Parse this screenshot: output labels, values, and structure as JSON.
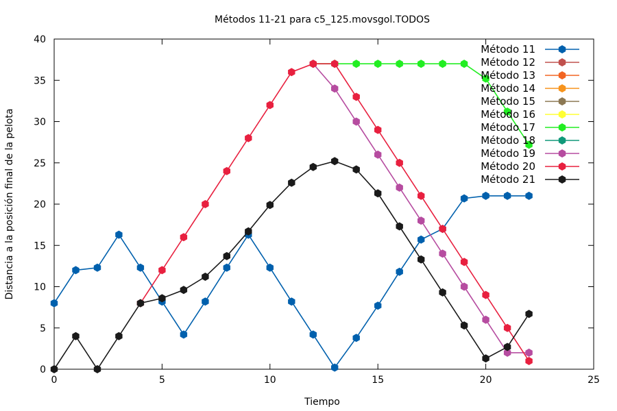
{
  "chart_data": {
    "type": "line",
    "title": "Métodos 11-21 para c5_125.movsgol.TODOS",
    "xlabel": "Tiempo",
    "ylabel": "Distancia a la posición final de la pelota",
    "xlim": [
      0,
      25
    ],
    "ylim": [
      0,
      40
    ],
    "xticks": [
      0,
      5,
      10,
      15,
      20,
      25
    ],
    "yticks": [
      0,
      5,
      10,
      15,
      20,
      25,
      30,
      35,
      40
    ],
    "grid": false,
    "legend_position": "top-right",
    "series": [
      {
        "name": "Método 11",
        "color": "#0060ad",
        "x": [
          0,
          1,
          2,
          3,
          4,
          5,
          6,
          7,
          8,
          9,
          10,
          11,
          12,
          13,
          14,
          15,
          16,
          17,
          18,
          19,
          20,
          21,
          22
        ],
        "y": [
          8,
          12,
          12.3,
          16.3,
          12.3,
          8.2,
          4.2,
          8.2,
          12.3,
          16.3,
          12.3,
          8.2,
          4.2,
          0.2,
          3.8,
          7.7,
          11.8,
          15.7,
          17,
          20.7,
          21,
          21,
          21
        ]
      },
      {
        "name": "Método 12",
        "color": "#c0504d",
        "x": [],
        "y": []
      },
      {
        "name": "Método 13",
        "color": "#f26522",
        "x": [],
        "y": []
      },
      {
        "name": "Método 14",
        "color": "#f7941d",
        "x": [],
        "y": []
      },
      {
        "name": "Método 15",
        "color": "#8c7853",
        "x": [],
        "y": []
      },
      {
        "name": "Método 16",
        "color": "#ffff33",
        "x": [],
        "y": []
      },
      {
        "name": "Método 17",
        "color": "#22ee22",
        "x": [
          12,
          13,
          14,
          15,
          16,
          17,
          18,
          19,
          20,
          21,
          22
        ],
        "y": [
          37,
          37,
          37,
          37,
          37,
          37,
          37,
          37,
          35.2,
          31.2,
          27.2
        ]
      },
      {
        "name": "Método 18",
        "color": "#11997a",
        "x": [],
        "y": []
      },
      {
        "name": "Método 19",
        "color": "#b64ca0",
        "x": [
          12,
          13,
          14,
          15,
          16,
          17,
          18,
          19,
          20,
          21,
          22
        ],
        "y": [
          37,
          34,
          30,
          26,
          22,
          18,
          14,
          10,
          6,
          2,
          2
        ]
      },
      {
        "name": "Método 20",
        "color": "#e8203f",
        "x": [
          4,
          5,
          6,
          7,
          8,
          9,
          10,
          11,
          12,
          13,
          14,
          15,
          16,
          17,
          18,
          19,
          20,
          21,
          22
        ],
        "y": [
          8,
          12,
          16,
          20,
          24,
          28,
          32,
          36,
          37,
          37,
          33,
          29,
          25,
          21,
          17,
          13,
          9,
          5,
          1
        ]
      },
      {
        "name": "Método 21",
        "color": "#1a1a1a",
        "x": [
          0,
          1,
          2,
          3,
          4,
          5,
          6,
          7,
          8,
          9,
          10,
          11,
          12,
          13,
          14,
          15,
          16,
          17,
          18,
          19,
          20,
          21,
          22
        ],
        "y": [
          0,
          4,
          0,
          4,
          8,
          8.6,
          9.6,
          11.2,
          13.7,
          16.7,
          19.9,
          22.6,
          24.5,
          25.2,
          24.2,
          21.3,
          17.3,
          13.3,
          9.3,
          5.3,
          1.3,
          2.7,
          6.7
        ]
      }
    ]
  }
}
